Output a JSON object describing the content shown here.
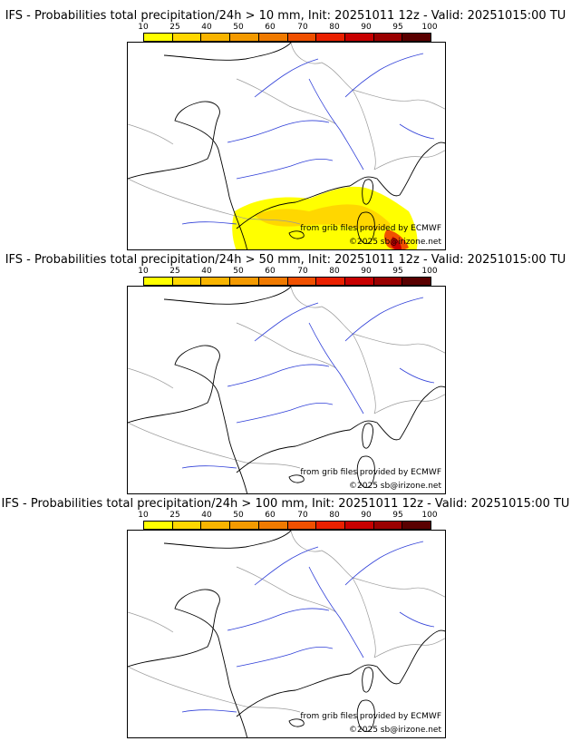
{
  "scale": {
    "labels": [
      "10",
      "25",
      "40",
      "50",
      "60",
      "70",
      "80",
      "90",
      "95",
      "100"
    ],
    "colors": [
      "#ffff00",
      "#ffd700",
      "#f8b400",
      "#f49a00",
      "#f07a00",
      "#f05000",
      "#ea2000",
      "#c80000",
      "#9a0000",
      "#5a0000"
    ]
  },
  "panels": [
    {
      "title": "IFS - Probabilities total precipitation/24h > 10 mm, Init: 20251011 12z - Valid: 20251015:00 TU",
      "credit_source": "from grib files provided by ECMWF",
      "credit_copyright": "©2025 sb@irizone.net",
      "has_precip": true
    },
    {
      "title": "IFS - Probabilities total precipitation/24h > 50 mm, Init: 20251011 12z - Valid: 20251015:00 TU",
      "credit_source": "from grib files provided by ECMWF",
      "credit_copyright": "©2025 sb@irizone.net",
      "has_precip": false
    },
    {
      "title": "IFS - Probabilities total precipitation/24h > 100 mm, Init: 20251011 12z - Valid: 20251015:00 TU",
      "credit_source": "from grib files provided by ECMWF",
      "credit_copyright": "©2025 sb@irizone.net",
      "has_precip": false
    }
  ]
}
